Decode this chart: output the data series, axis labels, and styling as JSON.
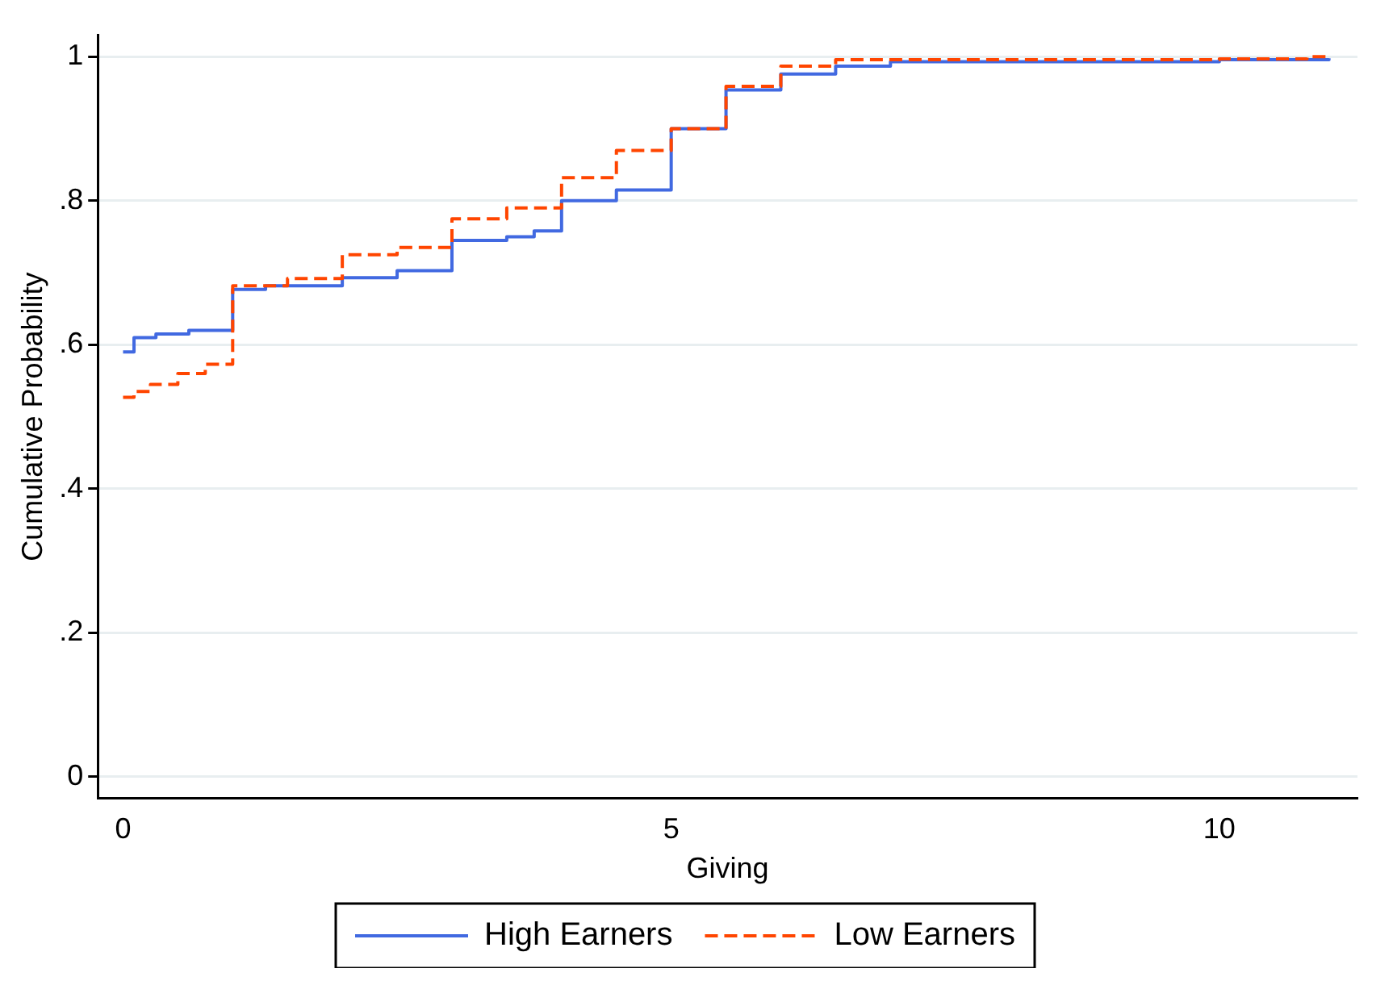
{
  "chart_data": {
    "type": "step",
    "xlabel": "Giving",
    "ylabel": "Cumulative Probability",
    "xlim": [
      -0.23,
      11.26
    ],
    "ylim": [
      -0.03,
      1.03
    ],
    "xticks": [
      0,
      5,
      10
    ],
    "yticks": [
      0,
      {
        "value": 0.2,
        "label": ".2"
      },
      {
        "value": 0.4,
        "label": ".4"
      },
      {
        "value": 0.6,
        "label": ".6"
      },
      {
        "value": 0.8,
        "label": ".8"
      },
      1
    ],
    "grid": "y",
    "legend": "bottom",
    "series": [
      {
        "name": "High Earners",
        "color": "#4169e1",
        "line_style": "solid",
        "x": [
          0,
          0.1,
          0.3,
          0.6,
          1,
          1.3,
          2,
          2.5,
          3,
          3.5,
          3.75,
          4,
          4.5,
          5,
          5.5,
          6,
          6.5,
          7,
          10,
          11
        ],
        "values": [
          0.59,
          0.61,
          0.615,
          0.62,
          0.677,
          0.682,
          0.693,
          0.703,
          0.745,
          0.75,
          0.758,
          0.8,
          0.815,
          0.9,
          0.954,
          0.976,
          0.987,
          0.993,
          0.996,
          0.998
        ]
      },
      {
        "name": "Low Earners",
        "color": "#ff4500",
        "line_style": "dashed",
        "x": [
          0,
          0.1,
          0.25,
          0.5,
          0.75,
          1,
          1.5,
          2,
          2.5,
          3,
          3.5,
          4,
          4.5,
          5,
          5.5,
          6,
          6.5,
          10,
          10.8,
          11
        ],
        "values": [
          0.527,
          0.535,
          0.545,
          0.56,
          0.573,
          0.682,
          0.692,
          0.725,
          0.735,
          0.775,
          0.79,
          0.832,
          0.87,
          0.9,
          0.959,
          0.987,
          0.996,
          0.997,
          1.0,
          1.0
        ]
      }
    ]
  }
}
